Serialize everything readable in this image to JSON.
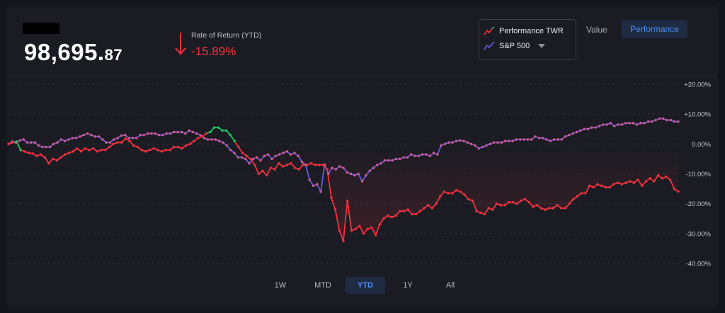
{
  "account": {
    "balance_whole": "98,695.",
    "balance_cents": "87"
  },
  "return": {
    "label": "Rate of Return (YTD)",
    "value": "-15.89%"
  },
  "legend": {
    "performance_label": "Performance TWR",
    "benchmark_label": "S&P 500"
  },
  "view_toggle": {
    "value_label": "Value",
    "performance_label": "Performance"
  },
  "ranges": [
    {
      "label": "1W",
      "active": false
    },
    {
      "label": "MTD",
      "active": false
    },
    {
      "label": "YTD",
      "active": true
    },
    {
      "label": "1Y",
      "active": false
    },
    {
      "label": "All",
      "active": false
    }
  ],
  "colors": {
    "portfolio_down": "#f0313d",
    "portfolio_up": "#22c55e",
    "benchmark": "#6a5ae0",
    "accent": "#4b8ef5"
  },
  "chart_data": {
    "type": "line",
    "y_ticks": [
      "+20.00%",
      "+10.00%",
      "0.00%",
      "-10.00%",
      "-20.00%",
      "-30.00%",
      "-40.00%"
    ],
    "ylim": [
      -40,
      20
    ],
    "xlim": [
      0,
      130
    ],
    "grid": true,
    "series": [
      {
        "name": "Performance TWR",
        "values": [
          0,
          0.5,
          0.8,
          -2,
          -2.5,
          -3,
          -3.2,
          -4,
          -3.5,
          -4.5,
          -6.5,
          -5,
          -5.5,
          -4.5,
          -3.5,
          -3,
          -2.5,
          -1.5,
          -2.5,
          -1.5,
          -2,
          -1.5,
          -2.5,
          -2,
          -2,
          -1,
          0,
          0.5,
          0.5,
          1.8,
          1,
          -0.5,
          -1,
          -2,
          -2.5,
          -2,
          -1.5,
          -2,
          -2.5,
          -2,
          -2,
          -1,
          -1,
          -1.5,
          -0.5,
          0,
          1,
          2,
          2.5,
          3.5,
          4,
          5.5,
          5.5,
          4.5,
          4.5,
          3,
          1,
          -1,
          -3,
          -4,
          -5,
          -7,
          -10,
          -9,
          -10.5,
          -8,
          -8.5,
          -6.5,
          -7.5,
          -7,
          -6.5,
          -8,
          -8.5,
          -7,
          -7,
          -6.5,
          -7,
          -7,
          -7,
          -8.5,
          -18,
          -22,
          -29,
          -32.5,
          -19,
          -29,
          -28.5,
          -27.5,
          -30,
          -28.5,
          -28,
          -30.5,
          -27,
          -25,
          -24,
          -24.5,
          -24,
          -22.5,
          -22.5,
          -22,
          -23.5,
          -23.5,
          -22.5,
          -21.5,
          -20.5,
          -21.5,
          -20,
          -17.5,
          -16,
          -16.5,
          -16.5,
          -15.5,
          -16,
          -17,
          -18.5,
          -19,
          -22.5,
          -23,
          -23.5,
          -21.5,
          -22,
          -20,
          -20.5,
          -20.5,
          -19.5,
          -19.5,
          -20,
          -19,
          -18.5,
          -19.5,
          -21,
          -20.5,
          -21.5,
          -22,
          -21.5,
          -21.5,
          -20.5,
          -21.5,
          -21.5,
          -20,
          -18.5,
          -17.5,
          -16.5,
          -16.5,
          -14,
          -14.5,
          -13.5,
          -14,
          -14.5,
          -14.5,
          -13.5,
          -13,
          -13.5,
          -13,
          -12.5,
          -13,
          -12,
          -14,
          -12.5,
          -11.5,
          -12.5,
          -10.5,
          -11.5,
          -11,
          -12,
          -15,
          -15.9
        ]
      },
      {
        "name": "S&P 500",
        "values": [
          0,
          0.8,
          0.5,
          1.2,
          1.5,
          0.5,
          0.5,
          0.5,
          -0.5,
          -1,
          -1,
          -1,
          0,
          0.5,
          1.5,
          1,
          1.5,
          2,
          2,
          2.5,
          3,
          3.5,
          3,
          2.5,
          2.5,
          1.5,
          0.5,
          0.5,
          1.5,
          2,
          2.8,
          3,
          2,
          2,
          2,
          3,
          3,
          3.5,
          3.5,
          3.5,
          3,
          3,
          3.5,
          3.5,
          4,
          4,
          4,
          3.5,
          4.5,
          4,
          3.5,
          3,
          2,
          1.5,
          1.5,
          1.5,
          1,
          0.5,
          -0.5,
          -2,
          -3,
          -4.5,
          -4.5,
          -5,
          -6.5,
          -5,
          -4.5,
          -5.5,
          -4,
          -3.5,
          -5,
          -4,
          -3.5,
          -3,
          -2.5,
          -3.5,
          -3,
          -4,
          -6,
          -7,
          -12,
          -14,
          -13.5,
          -16,
          -7,
          -10,
          -8,
          -8.5,
          -7.5,
          -8,
          -9.5,
          -10,
          -10.5,
          -10,
          -12.5,
          -10.5,
          -9,
          -8,
          -7,
          -6.5,
          -5.5,
          -5.5,
          -5.5,
          -5,
          -5,
          -4.5,
          -4.5,
          -3.5,
          -4,
          -4,
          -3.5,
          -3.5,
          -4,
          -3,
          -3.5,
          -0.5,
          0,
          0.5,
          0.5,
          1,
          1.2,
          1,
          0.5,
          0,
          -0.5,
          -1.5,
          -1,
          -0.5,
          0,
          0.5,
          0.5,
          0.5,
          1,
          1,
          1,
          1.5,
          1.5,
          1.5,
          1.5,
          1.5,
          2.5,
          2,
          2,
          1.5,
          1,
          1.5,
          1.5,
          1.5,
          2.5,
          3,
          3.5,
          4,
          4.5,
          5,
          5,
          5.5,
          5.5,
          6,
          6.5,
          6.5,
          7,
          6,
          6.5,
          6.5,
          7,
          7,
          7,
          6.5,
          7,
          7,
          7.5,
          7.5,
          8,
          8.5,
          8.5,
          8,
          8,
          7.5,
          7.5
        ]
      }
    ]
  }
}
